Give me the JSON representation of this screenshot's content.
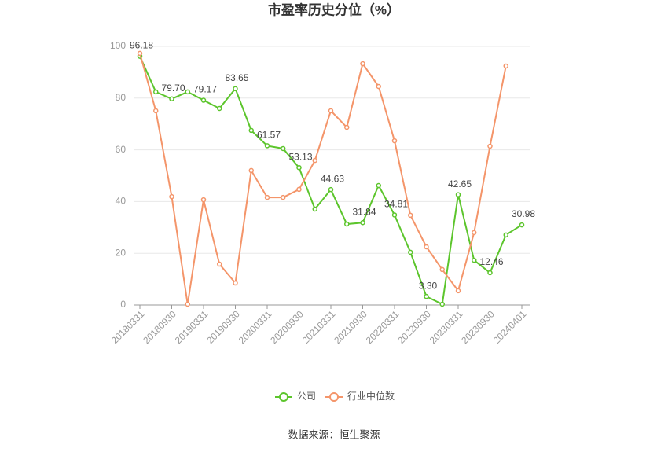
{
  "chart_data": {
    "type": "line",
    "title": "市盈率历史分位（%）",
    "source": "数据来源：恒生聚源",
    "categories": [
      "20180331",
      null,
      "20180930",
      null,
      "20190331",
      null,
      "20190930",
      null,
      "20200331",
      null,
      "20200930",
      null,
      "20210331",
      null,
      "20210930",
      null,
      "20220331",
      null,
      "20220930",
      null,
      "20230331",
      null,
      "20230930",
      null,
      "20240401"
    ],
    "series": [
      {
        "name": "公司",
        "color": "#5cc52c",
        "values": [
          96.18,
          82.4,
          79.7,
          82.4,
          79.17,
          76.0,
          83.65,
          67.5,
          61.57,
          60.5,
          53.13,
          37.1,
          44.63,
          31.3,
          31.84,
          46.2,
          34.81,
          20.4,
          3.3,
          0.3,
          42.65,
          17.3,
          12.46,
          27.1,
          30.98
        ],
        "value_labels": [
          "96.18",
          null,
          "79.70",
          null,
          "79.17",
          null,
          "83.65",
          null,
          "61.57",
          null,
          "53.13",
          null,
          "44.63",
          null,
          "31.84",
          null,
          "34.81",
          null,
          "3.30",
          null,
          "42.65",
          null,
          "12.46",
          null,
          "30.98"
        ]
      },
      {
        "name": "行业中位数",
        "color": "#f4956a",
        "values": [
          97.3,
          75.1,
          41.9,
          0.3,
          40.7,
          15.8,
          8.5,
          52.0,
          41.6,
          41.6,
          44.7,
          55.9,
          75.1,
          68.7,
          93.3,
          84.5,
          63.5,
          34.7,
          22.5,
          13.7,
          5.5,
          28.0,
          61.4,
          92.4,
          null
        ]
      }
    ],
    "ylim": [
      0,
      100
    ],
    "yticks": [
      0,
      20,
      40,
      60,
      80,
      100
    ],
    "grid": true,
    "legend": "bottom"
  }
}
